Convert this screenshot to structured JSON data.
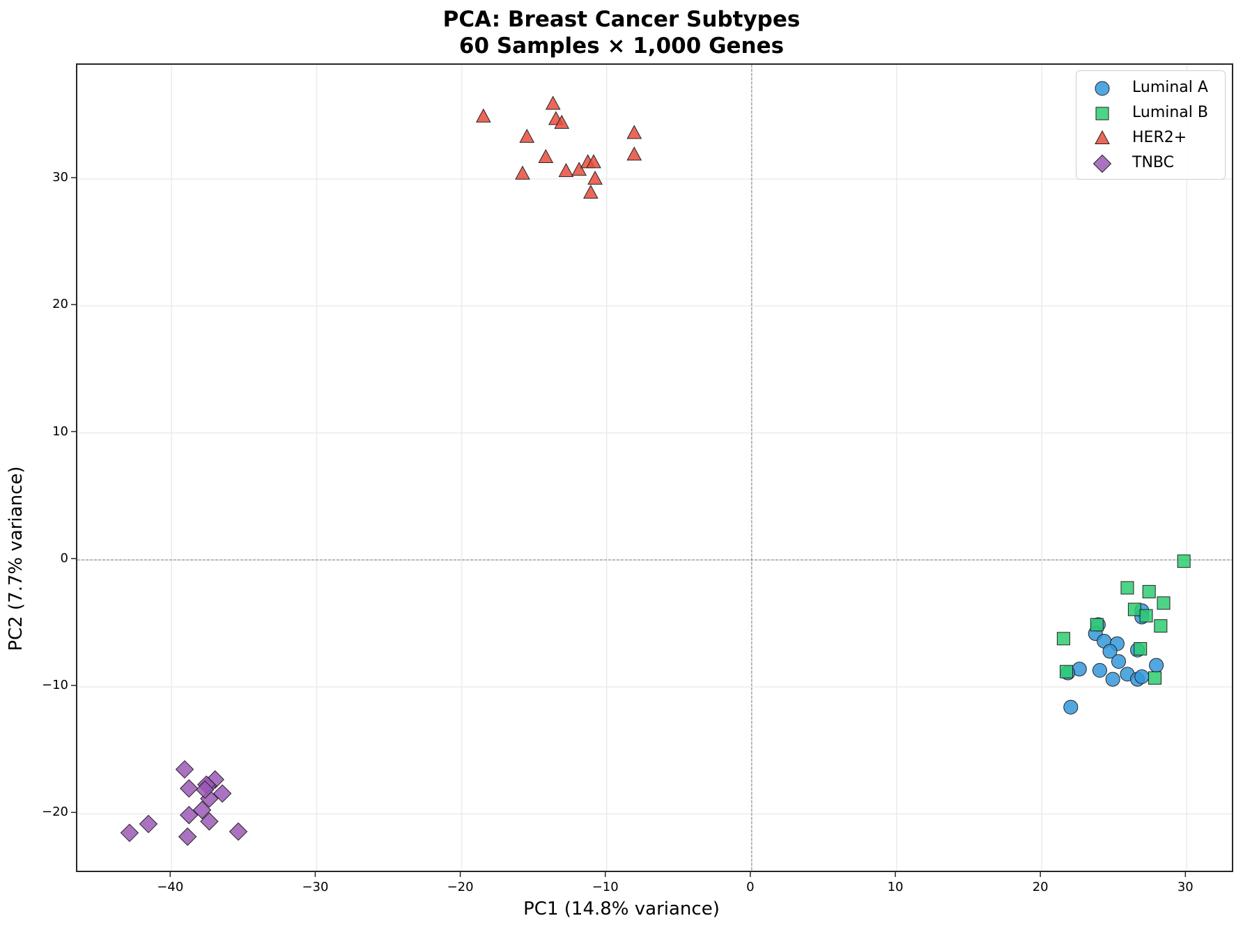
{
  "chart_data": {
    "type": "scatter",
    "title": "PCA: Breast Cancer Subtypes",
    "subtitle": "60 Samples × 1,000 Genes",
    "xlabel": "PC1 (14.8% variance)",
    "ylabel": "PC2 (7.7% variance)",
    "xlim": [
      -46.5,
      33.3
    ],
    "ylim": [
      -24.7,
      39.0
    ],
    "xticks": [
      -40,
      -30,
      -20,
      -10,
      0,
      10,
      20,
      30
    ],
    "yticks": [
      -20,
      -10,
      0,
      10,
      20,
      30
    ],
    "xtick_labels": [
      "−40",
      "−30",
      "−20",
      "−10",
      "0",
      "10",
      "20",
      "30"
    ],
    "ytick_labels": [
      "−20",
      "−10",
      "0",
      "10",
      "20",
      "30"
    ],
    "grid": true,
    "reference_lines": {
      "x": 0,
      "y": 0,
      "style": "dashed"
    },
    "legend_position": "upper right",
    "series": [
      {
        "name": "Luminal A",
        "marker": "circle",
        "color": "#3498db",
        "points": [
          [
            26.9,
            -4.0
          ],
          [
            26.9,
            -4.5
          ],
          [
            23.9,
            -5.1
          ],
          [
            23.7,
            -5.8
          ],
          [
            24.3,
            -6.4
          ],
          [
            25.2,
            -6.6
          ],
          [
            24.7,
            -7.2
          ],
          [
            26.6,
            -7.1
          ],
          [
            25.3,
            -8.0
          ],
          [
            27.9,
            -8.3
          ],
          [
            22.6,
            -8.6
          ],
          [
            24.0,
            -8.7
          ],
          [
            21.8,
            -8.9
          ],
          [
            25.9,
            -9.0
          ],
          [
            24.9,
            -9.4
          ],
          [
            26.6,
            -9.4
          ],
          [
            26.9,
            -9.2
          ],
          [
            22.0,
            -11.6
          ]
        ]
      },
      {
        "name": "Luminal B",
        "marker": "square",
        "color": "#2ecc71",
        "points": [
          [
            29.8,
            -0.1
          ],
          [
            25.9,
            -2.2
          ],
          [
            27.4,
            -2.5
          ],
          [
            28.4,
            -3.4
          ],
          [
            26.4,
            -3.9
          ],
          [
            27.2,
            -4.4
          ],
          [
            28.2,
            -5.2
          ],
          [
            23.8,
            -5.1
          ],
          [
            21.5,
            -6.2
          ],
          [
            26.8,
            -7.0
          ],
          [
            21.7,
            -8.8
          ],
          [
            27.8,
            -9.3
          ]
        ]
      },
      {
        "name": "HER2+",
        "marker": "triangle",
        "color": "#e74c3c",
        "points": [
          [
            -18.5,
            34.9
          ],
          [
            -13.7,
            35.9
          ],
          [
            -13.5,
            34.7
          ],
          [
            -13.1,
            34.4
          ],
          [
            -15.5,
            33.3
          ],
          [
            -8.1,
            33.6
          ],
          [
            -14.2,
            31.7
          ],
          [
            -8.1,
            31.9
          ],
          [
            -15.8,
            30.4
          ],
          [
            -12.8,
            30.6
          ],
          [
            -11.9,
            30.7
          ],
          [
            -11.3,
            31.3
          ],
          [
            -10.9,
            31.3
          ],
          [
            -10.8,
            30.0
          ],
          [
            -11.1,
            28.9
          ]
        ]
      },
      {
        "name": "TNBC",
        "marker": "diamond",
        "color": "#9b59b6",
        "points": [
          [
            -39.1,
            -16.5
          ],
          [
            -38.8,
            -18.0
          ],
          [
            -37.0,
            -17.3
          ],
          [
            -37.5,
            -17.8
          ],
          [
            -37.6,
            -17.7
          ],
          [
            -36.5,
            -18.4
          ],
          [
            -37.4,
            -18.8
          ],
          [
            -37.9,
            -19.7
          ],
          [
            -38.8,
            -20.1
          ],
          [
            -37.4,
            -20.6
          ],
          [
            -42.9,
            -21.5
          ],
          [
            -41.6,
            -20.8
          ],
          [
            -38.9,
            -21.8
          ],
          [
            -35.4,
            -21.4
          ],
          [
            -37.7,
            -18.1
          ]
        ]
      }
    ]
  },
  "colors": {
    "axis": "#262626",
    "grid": "#ebebeb",
    "reference_line": "#808080",
    "marker_edge": "#222222"
  }
}
